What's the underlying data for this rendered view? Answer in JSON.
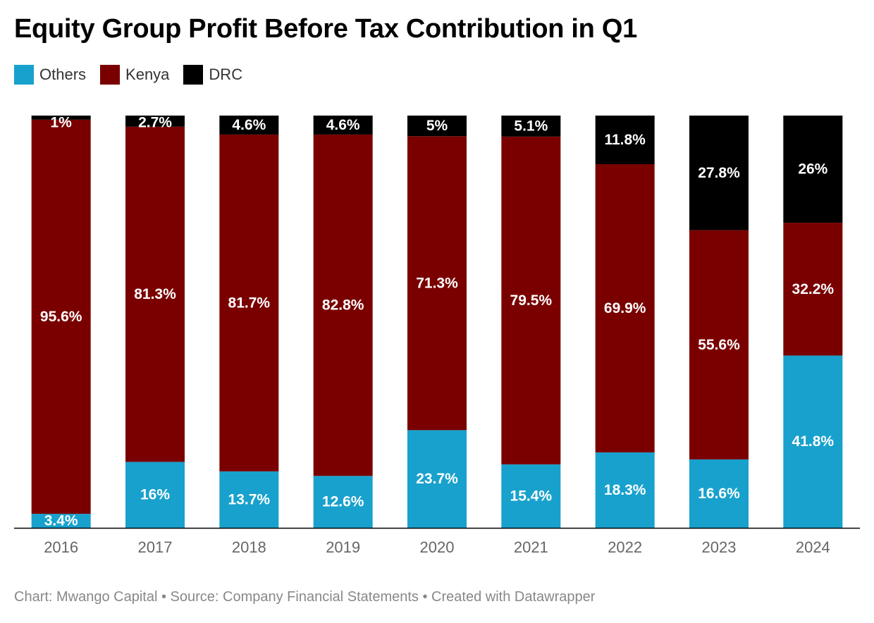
{
  "title": "Equity Group Profit Before Tax Contribution in Q1",
  "footer": "Chart: Mwango Capital • Source: Company Financial Statements • Created with Datawrapper",
  "legend": [
    {
      "label": "Others",
      "color": "#18a1cd"
    },
    {
      "label": "Kenya",
      "color": "#7a0000"
    },
    {
      "label": "DRC",
      "color": "#000000"
    }
  ],
  "chart_data": {
    "type": "bar",
    "stacked": true,
    "categories": [
      "2016",
      "2017",
      "2018",
      "2019",
      "2020",
      "2021",
      "2022",
      "2023",
      "2024"
    ],
    "series": [
      {
        "name": "Others",
        "color": "#18a1cd",
        "values": [
          3.4,
          16,
          13.7,
          12.6,
          23.7,
          15.4,
          18.3,
          16.6,
          41.8
        ],
        "labels": [
          "3.4%",
          "16%",
          "13.7%",
          "12.6%",
          "23.7%",
          "15.4%",
          "18.3%",
          "16.6%",
          "41.8%"
        ]
      },
      {
        "name": "Kenya",
        "color": "#7a0000",
        "values": [
          95.6,
          81.3,
          81.7,
          82.8,
          71.3,
          79.5,
          69.9,
          55.6,
          32.2
        ],
        "labels": [
          "95.6%",
          "81.3%",
          "81.7%",
          "82.8%",
          "71.3%",
          "79.5%",
          "69.9%",
          "55.6%",
          "32.2%"
        ]
      },
      {
        "name": "DRC",
        "color": "#000000",
        "values": [
          1,
          2.7,
          4.6,
          4.6,
          5,
          5.1,
          11.8,
          27.8,
          26
        ],
        "labels": [
          "1%",
          "2.7%",
          "4.6%",
          "4.6%",
          "5%",
          "5.1%",
          "11.8%",
          "27.8%",
          "26%"
        ]
      }
    ],
    "ylim": [
      0,
      100
    ],
    "legend_position": "top-left",
    "grid": false
  }
}
